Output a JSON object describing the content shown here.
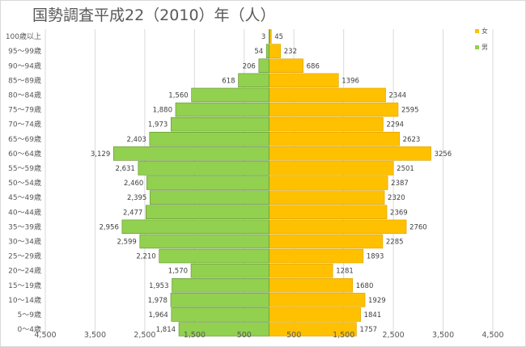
{
  "chart_data": {
    "type": "bar",
    "orientation": "horizontal",
    "title": "国勢調査平成22（2010）年（人）",
    "categories": [
      "100歳以上",
      "95～99歳",
      "90～94歳",
      "85～89歳",
      "80～84歳",
      "75～79歳",
      "70～74歳",
      "65～69歳",
      "60～64歳",
      "55～59歳",
      "50～54歳",
      "45～49歳",
      "40～44歳",
      "35～39歳",
      "30～34歳",
      "25～29歳",
      "20～24歳",
      "15～19歳",
      "10～14歳",
      "5～9歳",
      "0～4歳"
    ],
    "series": [
      {
        "name": "女",
        "color": "#ffc000",
        "values": [
          45,
          232,
          686,
          1396,
          2344,
          2595,
          2294,
          2623,
          3256,
          2501,
          2387,
          2320,
          2369,
          2760,
          2285,
          1893,
          1281,
          1680,
          1929,
          1841,
          1757
        ],
        "labels": [
          "45",
          "232",
          "686",
          "1396",
          "2344",
          "2595",
          "2294",
          "2623",
          "3256",
          "2501",
          "2387",
          "2320",
          "2369",
          "2760",
          "2285",
          "1893",
          "1281",
          "1680",
          "1929",
          "1841",
          "1757"
        ]
      },
      {
        "name": "男",
        "color": "#92d050",
        "values": [
          3,
          54,
          206,
          618,
          1560,
          1880,
          1973,
          2403,
          3129,
          2631,
          2460,
          2395,
          2477,
          2956,
          2599,
          2210,
          1570,
          1953,
          1978,
          1964,
          1814
        ],
        "labels": [
          "3",
          "54",
          "206",
          "618",
          "1,560",
          "1,880",
          "1,973",
          "2,403",
          "3,129",
          "2,631",
          "2,460",
          "2,395",
          "2,477",
          "2,956",
          "2,599",
          "2,210",
          "1,570",
          "1,953",
          "1,978",
          "1,964",
          "1,814"
        ]
      }
    ],
    "xlim": [
      -4500,
      4500
    ],
    "x_ticks": [
      -4500,
      -3500,
      -2500,
      -1500,
      -500,
      500,
      1500,
      2500,
      3500,
      4500
    ],
    "x_tick_labels": [
      "4,500",
      "3,500",
      "2,500",
      "1,500",
      "500",
      "500",
      "1,500",
      "2,500",
      "3,500",
      "4,500"
    ],
    "grid": true,
    "legend_position": "top-right"
  }
}
